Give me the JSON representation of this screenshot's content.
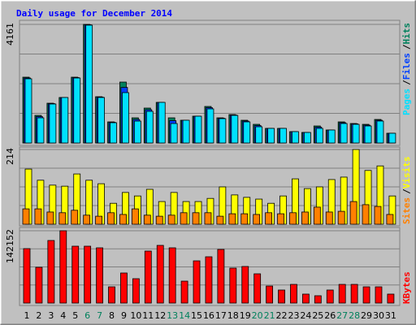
{
  "chart_data": [
    {
      "type": "bar",
      "title": "Daily usage for December 2014",
      "legend_separator": "/",
      "ylim": [
        0,
        4161
      ],
      "yticks": [
        4161
      ],
      "grid": true,
      "series": [
        {
          "name": "Hits",
          "color": "#00805c",
          "values": [
            2309,
            969,
            1396,
            1596,
            2309,
            4161,
            1624,
            741,
            2137,
            883,
            1225,
            1425,
            883,
            798,
            940,
            1282,
            883,
            997,
            798,
            655,
            513,
            513,
            399,
            370,
            598,
            456,
            741,
            684,
            655,
            826,
            342
          ]
        },
        {
          "name": "Files",
          "color": "#0040ff",
          "values": [
            2280,
            926,
            1382,
            1596,
            2295,
            4147,
            1610,
            727,
            1950,
            826,
            1168,
            1425,
            783,
            798,
            940,
            1240,
            869,
            983,
            770,
            612,
            513,
            513,
            399,
            370,
            555,
            456,
            712,
            670,
            626,
            798,
            342
          ]
        },
        {
          "name": "Pages",
          "color": "#00e0ff",
          "values": [
            2252,
            883,
            1368,
            1596,
            2280,
            4133,
            1596,
            712,
            1767,
            769,
            1111,
            1425,
            684,
            798,
            940,
            1197,
            855,
            969,
            741,
            570,
            513,
            513,
            399,
            370,
            513,
            456,
            684,
            655,
            598,
            770,
            342
          ]
        }
      ]
    },
    {
      "type": "bar",
      "legend_separator": "/",
      "ylim": [
        0,
        214
      ],
      "yticks": [
        214
      ],
      "grid": true,
      "series": [
        {
          "name": "Visits",
          "color": "#ffff00",
          "values": [
            158,
            126,
            112,
            109,
            144,
            126,
            116,
            60,
            91,
            81,
            100,
            65,
            91,
            65,
            65,
            74,
            107,
            84,
            77,
            72,
            60,
            81,
            130,
            102,
            107,
            128,
            135,
            214,
            154,
            167,
            81
          ]
        },
        {
          "name": "Sites",
          "color": "#ff8000",
          "values": [
            44,
            44,
            35,
            33,
            40,
            26,
            23,
            33,
            28,
            44,
            26,
            23,
            26,
            33,
            33,
            33,
            23,
            30,
            30,
            28,
            33,
            30,
            33,
            35,
            49,
            35,
            37,
            65,
            56,
            51,
            28
          ]
        }
      ]
    },
    {
      "type": "bar",
      "ylim": [
        0,
        142152
      ],
      "yticks": [
        142152
      ],
      "grid": true,
      "categories": [
        "1",
        "2",
        "3",
        "4",
        "5",
        "6",
        "7",
        "8",
        "9",
        "10",
        "11",
        "12",
        "13",
        "14",
        "15",
        "16",
        "17",
        "18",
        "19",
        "20",
        "21",
        "22",
        "23",
        "24",
        "25",
        "26",
        "27",
        "28",
        "29",
        "30",
        "31"
      ],
      "category_colors": [
        "#000000",
        "#000000",
        "#000000",
        "#000000",
        "#000000",
        "#00805c",
        "#00805c",
        "#000000",
        "#000000",
        "#000000",
        "#000000",
        "#000000",
        "#00805c",
        "#00805c",
        "#000000",
        "#000000",
        "#000000",
        "#000000",
        "#000000",
        "#00805c",
        "#00805c",
        "#000000",
        "#000000",
        "#000000",
        "#000000",
        "#000000",
        "#00805c",
        "#00805c",
        "#000000",
        "#000000",
        "#000000"
      ],
      "series": [
        {
          "name": "KBytes",
          "color": "#ff0000",
          "values": [
            107000,
            70300,
            123000,
            142152,
            111800,
            111800,
            108600,
            31900,
            59100,
            47900,
            102200,
            113400,
            108600,
            43100,
            83000,
            91000,
            105400,
            68700,
            71900,
            57500,
            33500,
            25600,
            36700,
            17600,
            14400,
            25600,
            36700,
            36700,
            31900,
            31900,
            17600
          ]
        }
      ]
    }
  ]
}
